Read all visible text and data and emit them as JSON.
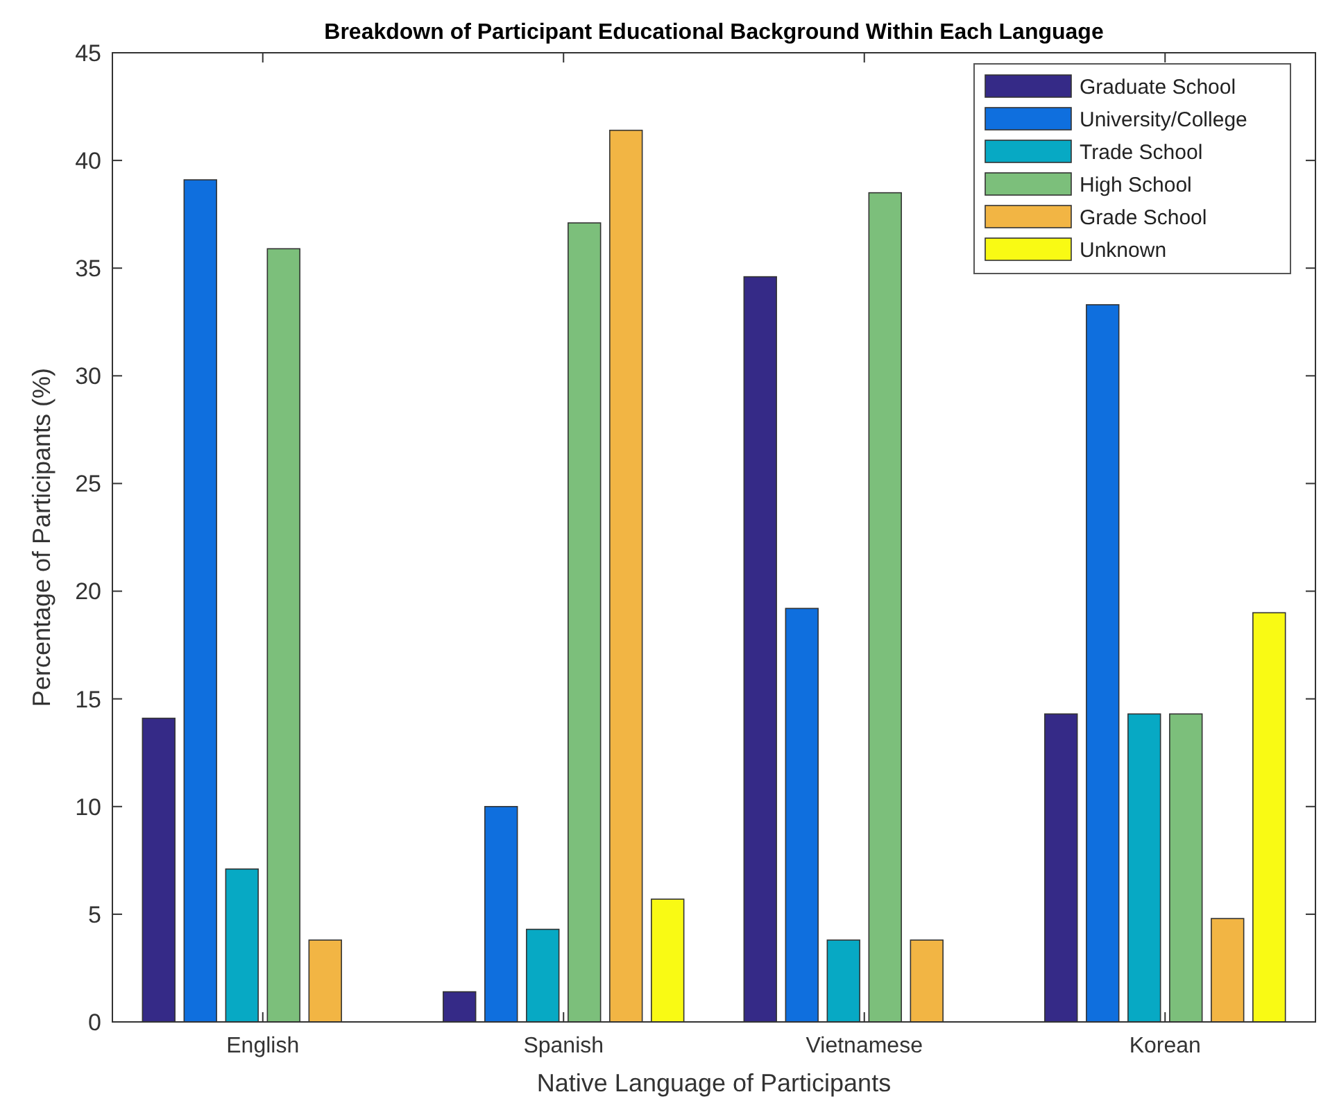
{
  "chart_data": {
    "type": "bar",
    "title": "Breakdown of Participant Educational Background Within Each Language",
    "xlabel": "Native Language of Participants",
    "ylabel": "Percentage of Participants (%)",
    "categories": [
      "English",
      "Spanish",
      "Vietnamese",
      "Korean"
    ],
    "series": [
      {
        "name": "Graduate School",
        "color": "#352a87",
        "values": [
          14.1,
          1.4,
          34.6,
          14.3
        ]
      },
      {
        "name": "University/College",
        "color": "#0f6fde",
        "values": [
          39.1,
          10.0,
          19.2,
          33.3
        ]
      },
      {
        "name": "Trade School",
        "color": "#07a9c4",
        "values": [
          7.1,
          4.3,
          3.8,
          14.3
        ]
      },
      {
        "name": "High School",
        "color": "#7cbf7b",
        "values": [
          35.9,
          37.1,
          38.5,
          14.3
        ]
      },
      {
        "name": "Grade School",
        "color": "#f2b544",
        "values": [
          3.8,
          41.4,
          3.8,
          4.8
        ]
      },
      {
        "name": "Unknown",
        "color": "#f9fa14",
        "values": [
          0,
          5.7,
          0,
          19.0
        ]
      }
    ],
    "ylim": [
      0,
      45
    ],
    "yticks": [
      0,
      5,
      10,
      15,
      20,
      25,
      30,
      35,
      40,
      45
    ],
    "grid": false,
    "legend": "top right"
  }
}
